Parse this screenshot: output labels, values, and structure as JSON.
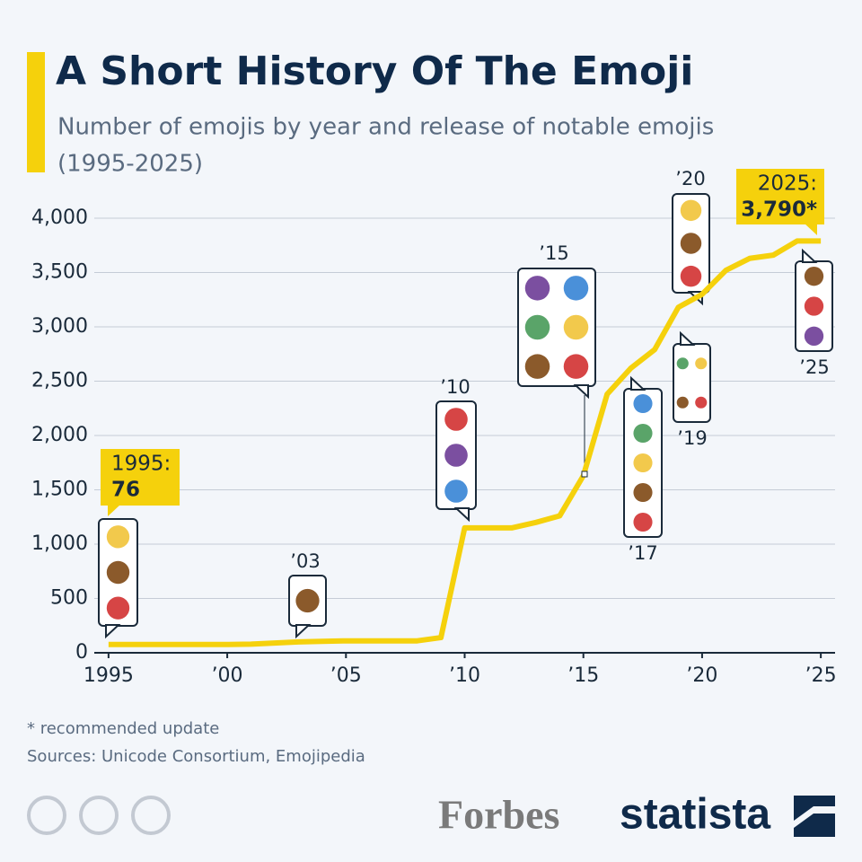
{
  "chart_data": {
    "type": "line",
    "title": "A Short History Of The Emoji",
    "subtitle": [
      "Number of emojis by year and release of notable emojis",
      "(1995-2025)"
    ],
    "x": [
      1995,
      1996,
      1997,
      1998,
      1999,
      2000,
      2001,
      2002,
      2003,
      2004,
      2005,
      2006,
      2007,
      2008,
      2009,
      2010,
      2011,
      2012,
      2013,
      2014,
      2015,
      2016,
      2017,
      2018,
      2019,
      2020,
      2021,
      2022,
      2023,
      2024,
      2025
    ],
    "values": [
      76,
      76,
      76,
      76,
      76,
      76,
      80,
      90,
      100,
      105,
      110,
      110,
      110,
      110,
      140,
      1150,
      1150,
      1150,
      1200,
      1260,
      1630,
      2380,
      2620,
      2790,
      3180,
      3300,
      3520,
      3630,
      3660,
      3790,
      3790
    ],
    "color": "#f5d10c",
    "xlim": [
      1994.4,
      2025.6
    ],
    "xticks": [
      1995,
      {
        "value": 2000,
        "label": "’00"
      },
      {
        "value": 2005,
        "label": "’05"
      },
      {
        "value": 2010,
        "label": "’10"
      },
      {
        "value": 2015,
        "label": "’15"
      },
      {
        "value": 2020,
        "label": "’20"
      },
      {
        "value": 2025,
        "label": "’25"
      }
    ],
    "ylim": [
      0,
      4000
    ],
    "yticks": [
      0,
      500,
      {
        "value": 1000,
        "label": "1,000"
      },
      {
        "value": 1500,
        "label": "1,500"
      },
      {
        "value": 2000,
        "label": "2,000"
      },
      {
        "value": 2500,
        "label": "2,500"
      },
      {
        "value": 3000,
        "label": "3,000"
      },
      {
        "value": 3500,
        "label": "3,500"
      },
      {
        "value": 4000,
        "label": "4,000"
      }
    ],
    "grid": true,
    "callouts": [
      {
        "label": "1995:",
        "value": 76
      },
      {
        "label": "2025:",
        "value": {
          "value": 3790,
          "label": "3,790*"
        }
      }
    ],
    "emoji_callouts": [
      {
        "label": "’03"
      },
      {
        "label": "’10"
      },
      {
        "label": "’15"
      },
      {
        "label": "’17"
      },
      {
        "label": "’19"
      },
      {
        "label": "’20"
      },
      {
        "label": "’25"
      }
    ],
    "footnote": "* recommended update",
    "source": "Sources: Unicode Consortium, Emojipedia",
    "logos": [
      "Forbes",
      "statista"
    ]
  }
}
